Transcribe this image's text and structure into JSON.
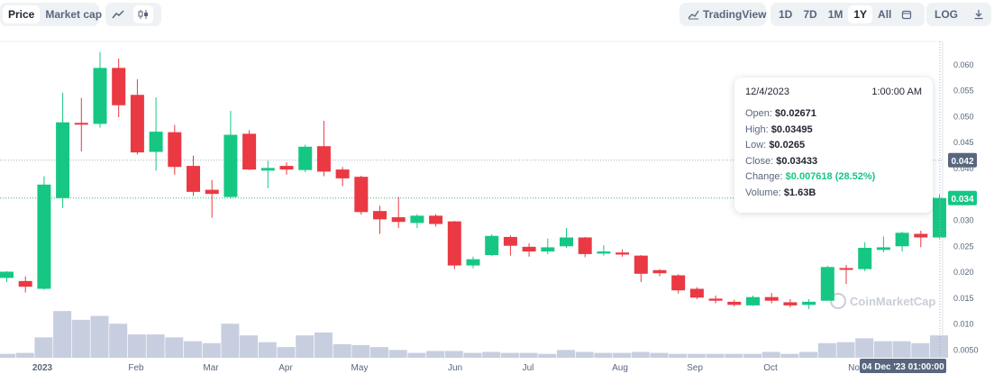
{
  "toolbar": {
    "price_tab": "Price",
    "marketcap_tab": "Market cap",
    "line_icon": "line-chart-icon",
    "candle_icon": "candlestick-icon",
    "tradingview_label": "TradingView",
    "tradingview_icon": "trend-icon",
    "ranges": [
      "1D",
      "7D",
      "1M",
      "1Y",
      "All"
    ],
    "active_range": "1Y",
    "calendar_icon": "calendar-icon",
    "log_label": "LOG",
    "download_icon": "download-icon"
  },
  "tooltip": {
    "date": "12/4/2023",
    "time": "1:00:00 AM",
    "open_label": "Open:",
    "open": "$0.02671",
    "high_label": "High:",
    "high": "$0.03495",
    "low_label": "Low:",
    "low": "$0.0265",
    "close_label": "Close:",
    "close": "$0.03433",
    "change_label": "Change:",
    "change": "$0.007618 (28.52%)",
    "volume_label": "Volume:",
    "volume": "$1.63B"
  },
  "chart_data": {
    "type": "candlestick",
    "x_ticks": [
      "2023",
      "Feb",
      "Mar",
      "Apr",
      "May",
      "Jun",
      "Jul",
      "Aug",
      "Sep",
      "Oct",
      "Nov"
    ],
    "y_ticks": [
      "0.060",
      "0.055",
      "0.050",
      "0.045",
      "0.040",
      "0.035",
      "0.030",
      "0.025",
      "0.020",
      "0.015",
      "0.010",
      "0.0050"
    ],
    "y_range": [
      0.0035,
      0.0645
    ],
    "price_labels": [
      {
        "text": "0.042",
        "value": 0.0416,
        "color": "#58667e"
      },
      {
        "text": "0.034",
        "value": 0.0343,
        "color": "#16c784"
      }
    ],
    "crosshair_label": "04 Dec '23  01:00:00",
    "watermark": "CoinMarketCap",
    "candles": [
      {
        "o": 0.0189,
        "h": 0.0202,
        "l": 0.0181,
        "c": 0.0201
      },
      {
        "o": 0.0183,
        "h": 0.0192,
        "l": 0.0161,
        "c": 0.0172
      },
      {
        "o": 0.0168,
        "h": 0.0385,
        "l": 0.0166,
        "c": 0.0369
      },
      {
        "o": 0.0343,
        "h": 0.0546,
        "l": 0.0324,
        "c": 0.0489
      },
      {
        "o": 0.0488,
        "h": 0.0536,
        "l": 0.0433,
        "c": 0.0487
      },
      {
        "o": 0.0486,
        "h": 0.0625,
        "l": 0.0479,
        "c": 0.0594
      },
      {
        "o": 0.0594,
        "h": 0.0612,
        "l": 0.0499,
        "c": 0.0522
      },
      {
        "o": 0.0542,
        "h": 0.0572,
        "l": 0.0427,
        "c": 0.0431
      },
      {
        "o": 0.0432,
        "h": 0.0537,
        "l": 0.0396,
        "c": 0.0471
      },
      {
        "o": 0.047,
        "h": 0.0484,
        "l": 0.0388,
        "c": 0.0403
      },
      {
        "o": 0.0405,
        "h": 0.0425,
        "l": 0.0347,
        "c": 0.0355
      },
      {
        "o": 0.0359,
        "h": 0.0378,
        "l": 0.0305,
        "c": 0.0351
      },
      {
        "o": 0.0345,
        "h": 0.0511,
        "l": 0.0342,
        "c": 0.0465
      },
      {
        "o": 0.0467,
        "h": 0.0474,
        "l": 0.0397,
        "c": 0.0398
      },
      {
        "o": 0.0396,
        "h": 0.0415,
        "l": 0.0362,
        "c": 0.0401
      },
      {
        "o": 0.0405,
        "h": 0.0412,
        "l": 0.0388,
        "c": 0.0398
      },
      {
        "o": 0.0397,
        "h": 0.0446,
        "l": 0.0393,
        "c": 0.0442
      },
      {
        "o": 0.0443,
        "h": 0.0492,
        "l": 0.0385,
        "c": 0.0394
      },
      {
        "o": 0.0398,
        "h": 0.0403,
        "l": 0.0366,
        "c": 0.0381
      },
      {
        "o": 0.0384,
        "h": 0.0386,
        "l": 0.0311,
        "c": 0.0316
      },
      {
        "o": 0.0318,
        "h": 0.0328,
        "l": 0.0274,
        "c": 0.0302
      },
      {
        "o": 0.0306,
        "h": 0.0345,
        "l": 0.0285,
        "c": 0.0297
      },
      {
        "o": 0.0295,
        "h": 0.0312,
        "l": 0.0285,
        "c": 0.0309
      },
      {
        "o": 0.0309,
        "h": 0.0312,
        "l": 0.0288,
        "c": 0.0293
      },
      {
        "o": 0.0298,
        "h": 0.0299,
        "l": 0.0206,
        "c": 0.0213
      },
      {
        "o": 0.0213,
        "h": 0.023,
        "l": 0.0208,
        "c": 0.0225
      },
      {
        "o": 0.0233,
        "h": 0.0273,
        "l": 0.0231,
        "c": 0.027
      },
      {
        "o": 0.0268,
        "h": 0.0271,
        "l": 0.0232,
        "c": 0.0251
      },
      {
        "o": 0.0249,
        "h": 0.0256,
        "l": 0.023,
        "c": 0.024
      },
      {
        "o": 0.024,
        "h": 0.0265,
        "l": 0.0235,
        "c": 0.0248
      },
      {
        "o": 0.025,
        "h": 0.0285,
        "l": 0.0247,
        "c": 0.0267
      },
      {
        "o": 0.0267,
        "h": 0.0268,
        "l": 0.0229,
        "c": 0.0235
      },
      {
        "o": 0.0236,
        "h": 0.0252,
        "l": 0.0232,
        "c": 0.024
      },
      {
        "o": 0.0238,
        "h": 0.0244,
        "l": 0.023,
        "c": 0.0234
      },
      {
        "o": 0.0232,
        "h": 0.0233,
        "l": 0.0181,
        "c": 0.0197
      },
      {
        "o": 0.0204,
        "h": 0.0206,
        "l": 0.0192,
        "c": 0.0198
      },
      {
        "o": 0.0194,
        "h": 0.0196,
        "l": 0.0159,
        "c": 0.0165
      },
      {
        "o": 0.0168,
        "h": 0.0171,
        "l": 0.0148,
        "c": 0.0151
      },
      {
        "o": 0.0149,
        "h": 0.0155,
        "l": 0.014,
        "c": 0.0145
      },
      {
        "o": 0.0143,
        "h": 0.0147,
        "l": 0.0134,
        "c": 0.0137
      },
      {
        "o": 0.0136,
        "h": 0.0155,
        "l": 0.0135,
        "c": 0.0152
      },
      {
        "o": 0.0152,
        "h": 0.016,
        "l": 0.014,
        "c": 0.0145
      },
      {
        "o": 0.0142,
        "h": 0.0148,
        "l": 0.0132,
        "c": 0.0136
      },
      {
        "o": 0.0137,
        "h": 0.0148,
        "l": 0.0129,
        "c": 0.0143
      },
      {
        "o": 0.0145,
        "h": 0.0212,
        "l": 0.0145,
        "c": 0.021
      },
      {
        "o": 0.0208,
        "h": 0.0214,
        "l": 0.0177,
        "c": 0.0206
      },
      {
        "o": 0.0206,
        "h": 0.0258,
        "l": 0.0202,
        "c": 0.0247
      },
      {
        "o": 0.0243,
        "h": 0.0269,
        "l": 0.0238,
        "c": 0.0248
      },
      {
        "o": 0.025,
        "h": 0.0278,
        "l": 0.024,
        "c": 0.0276
      },
      {
        "o": 0.0274,
        "h": 0.028,
        "l": 0.0248,
        "c": 0.0267
      },
      {
        "o": 0.0267,
        "h": 0.035,
        "l": 0.0265,
        "c": 0.0343
      }
    ],
    "volume": [
      0.4,
      0.5,
      2.1,
      4.8,
      3.9,
      4.3,
      3.5,
      2.4,
      2.4,
      2.1,
      1.7,
      1.5,
      3.5,
      2.3,
      1.6,
      1.1,
      2.3,
      2.6,
      1.4,
      1.3,
      1.1,
      0.8,
      0.5,
      0.7,
      0.7,
      0.5,
      0.6,
      0.5,
      0.5,
      0.4,
      0.8,
      0.6,
      0.5,
      0.5,
      0.6,
      0.5,
      0.4,
      0.4,
      0.4,
      0.4,
      0.4,
      0.6,
      0.4,
      0.6,
      1.5,
      1.6,
      2.0,
      1.7,
      1.7,
      1.5,
      2.3
    ],
    "colors": {
      "up": "#16c784",
      "down": "#ea3943",
      "volume": "#c7cedf",
      "grid": "#eff2f5"
    }
  }
}
